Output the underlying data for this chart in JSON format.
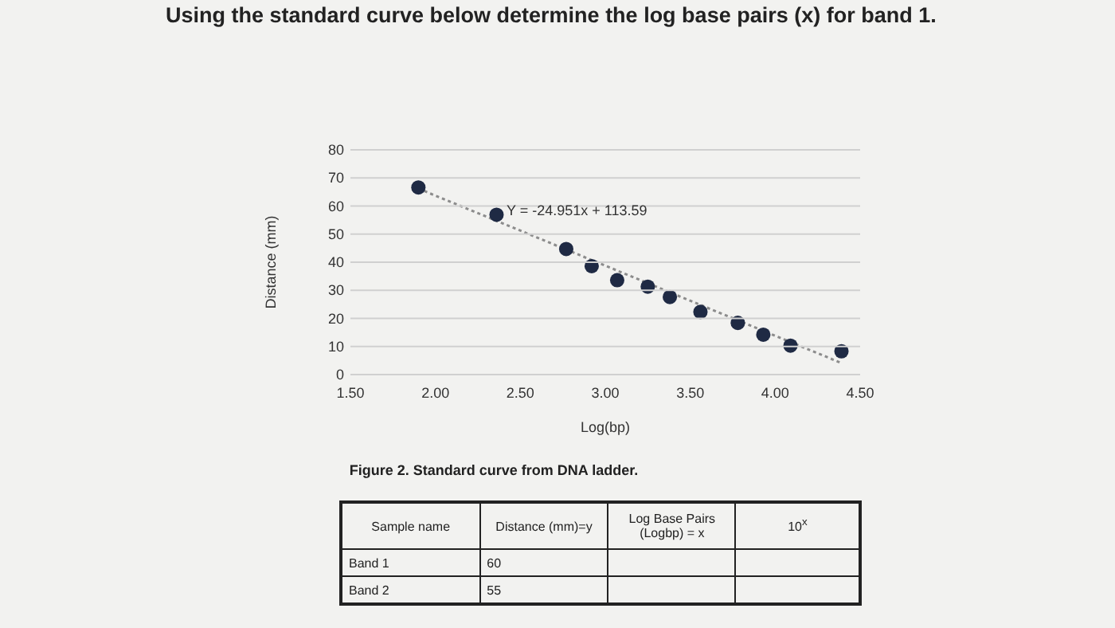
{
  "chart_data": {
    "type": "scatter",
    "title": "Using the standard curve below determine the log base pairs (x) for band 1.",
    "xlabel": "Log(bp)",
    "ylabel": "Distance (mm)",
    "series": [
      {
        "color": "#1f2a44",
        "x": [
          1.9,
          2.36,
          2.77,
          2.92,
          3.07,
          3.25,
          3.38,
          3.56,
          3.78,
          3.93,
          4.09,
          4.39
        ],
        "values": [
          66.6,
          56.9,
          44.7,
          38.6,
          33.6,
          31.3,
          27.6,
          22.3,
          18.4,
          14.2,
          10.3,
          8.3
        ]
      },
      {
        "type": "line",
        "color": "#8c8c8c",
        "line_style": "dotted",
        "marker": "none",
        "x": [
          1.9,
          4.39
        ],
        "values": [
          66.2,
          4.1
        ]
      }
    ],
    "xlim": [
      1.5,
      4.5
    ],
    "xticks": [
      {
        "value": 1.5,
        "label": "1.50"
      },
      {
        "value": 2,
        "label": "2.00"
      },
      {
        "value": 2.5,
        "label": "2.50"
      },
      {
        "value": 3,
        "label": "3.00"
      },
      {
        "value": 3.5,
        "label": "3.50"
      },
      {
        "value": 4,
        "label": "4.00"
      },
      {
        "value": 4.5,
        "label": "4.50"
      }
    ],
    "ylim": [
      0,
      80
    ],
    "yticks": [
      0,
      10,
      20,
      30,
      40,
      50,
      60,
      70,
      80
    ],
    "grid": "y",
    "marker": "circle",
    "annotations": [
      "Y = -24.951x + 113.59",
      "Figure 2. Standard curve from DNA ladder.",
      "Sample name",
      "Distance (mm)=y",
      "Log Base Pairs (Logbp) = x",
      "10$^{x}$",
      "Band 1",
      "60",
      "Band 2",
      "55"
    ]
  }
}
